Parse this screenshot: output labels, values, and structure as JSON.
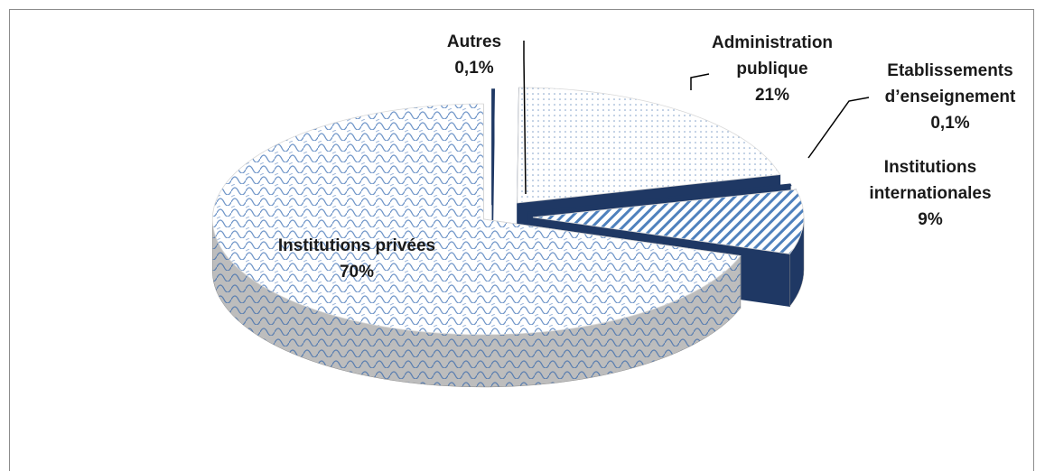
{
  "chart_data": {
    "type": "pie3d",
    "categories": [
      "Autres",
      "Administration publique",
      "Etablissements d’enseignement",
      "Institutions internationales",
      "Institutions privées"
    ],
    "values": [
      0.1,
      21,
      0.1,
      9,
      70
    ],
    "value_labels": [
      "0,1%",
      "21%",
      "0,1%",
      "9%",
      "70%"
    ],
    "colors": [
      "#1f3864",
      "#1f3864",
      "#1f3864",
      "#1f3864",
      "#bfbfbf"
    ]
  }
}
